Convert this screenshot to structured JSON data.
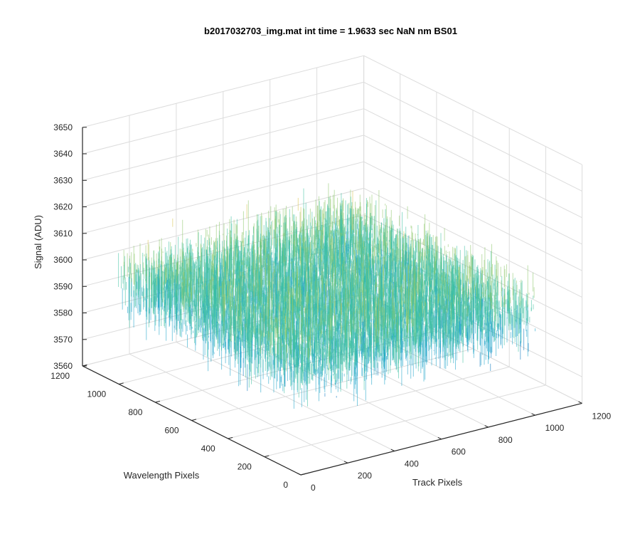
{
  "chart_data": {
    "type": "surface",
    "title": "b2017032703_img.mat int time = 1.9633 sec  NaN nm BS01",
    "xlabel": "Track Pixels",
    "ylabel": "Wavelength Pixels",
    "zlabel": "Signal (ADU)",
    "xlim": [
      0,
      1200
    ],
    "ylim": [
      0,
      1200
    ],
    "zlim": [
      3560,
      3650
    ],
    "x_ticks": [
      "0",
      "200",
      "400",
      "600",
      "800",
      "1000",
      "1200"
    ],
    "y_ticks": [
      "0",
      "200",
      "400",
      "600",
      "800",
      "1000",
      "1200"
    ],
    "z_ticks": [
      "3560",
      "3570",
      "3580",
      "3590",
      "3600",
      "3610",
      "3620",
      "3630",
      "3640",
      "3650"
    ],
    "data_extent": {
      "x": [
        1,
        1024
      ],
      "y": [
        1,
        1024
      ]
    },
    "signal_mean": 3598,
    "signal_range": [
      3575,
      3625
    ],
    "grid": true,
    "colormap": [
      "#0072bd",
      "#1aa3c8",
      "#3cbfa0",
      "#8cc66a",
      "#d9c24a"
    ]
  }
}
